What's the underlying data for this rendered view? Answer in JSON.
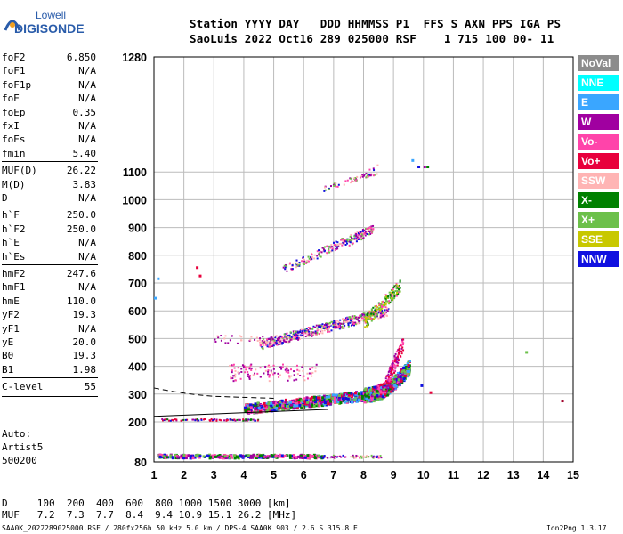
{
  "logo": {
    "line1": "Lowell",
    "line2": "DIGISONDE"
  },
  "header": {
    "line1": "Station YYYY DAY   DDD HHMMSS P1  FFS S AXN PPS IGA PS",
    "line2": "SaoLuis 2022 Oct16 289 025000 RSF    1 715 100 00- 11"
  },
  "params_group1": [
    {
      "k": "foF2",
      "v": "6.850"
    },
    {
      "k": "foF1",
      "v": "N/A"
    },
    {
      "k": "foF1p",
      "v": "N/A"
    },
    {
      "k": "foE",
      "v": "N/A"
    },
    {
      "k": "foEp",
      "v": "0.35"
    },
    {
      "k": "fxI",
      "v": "N/A"
    },
    {
      "k": "foEs",
      "v": "N/A"
    },
    {
      "k": "fmin",
      "v": "5.40"
    }
  ],
  "params_group2": [
    {
      "k": "MUF(D)",
      "v": "26.22"
    },
    {
      "k": "M(D)",
      "v": "3.83"
    },
    {
      "k": "D",
      "v": "N/A"
    }
  ],
  "params_group3": [
    {
      "k": "h`F",
      "v": "250.0"
    },
    {
      "k": "h`F2",
      "v": "250.0"
    },
    {
      "k": "h`E",
      "v": "N/A"
    },
    {
      "k": "h`Es",
      "v": "N/A"
    }
  ],
  "params_group4": [
    {
      "k": "hmF2",
      "v": "247.6"
    },
    {
      "k": "hmF1",
      "v": "N/A"
    },
    {
      "k": "hmE",
      "v": "110.0"
    },
    {
      "k": "yF2",
      "v": "19.3"
    },
    {
      "k": "yF1",
      "v": "N/A"
    },
    {
      "k": "yE",
      "v": "20.0"
    },
    {
      "k": "B0",
      "v": "19.3"
    },
    {
      "k": "B1",
      "v": "1.98"
    }
  ],
  "params_group5": [
    {
      "k": "C-level",
      "v": "55"
    }
  ],
  "autoscale": {
    "line1": "Auto:",
    "line2": "Artist5",
    "line3": "500200"
  },
  "legend": [
    {
      "label": "NoVal",
      "color": "#8c8c8c"
    },
    {
      "label": "NNE",
      "color": "#00ffff"
    },
    {
      "label": "E",
      "color": "#3aa6ff"
    },
    {
      "label": "W",
      "color": "#a000a0"
    },
    {
      "label": "Vo-",
      "color": "#ff44aa"
    },
    {
      "label": "Vo+",
      "color": "#e8003c"
    },
    {
      "label": "SSW",
      "color": "#ffb4b4"
    },
    {
      "label": "X-",
      "color": "#008000"
    },
    {
      "label": "X+",
      "color": "#6cc04a"
    },
    {
      "label": "SSE",
      "color": "#c8c800"
    },
    {
      "label": "NNW",
      "color": "#1010e0"
    }
  ],
  "axes": {
    "x_ticks": [
      "1",
      "2",
      "3",
      "4",
      "5",
      "6",
      "7",
      "8",
      "9",
      "10",
      "11",
      "12",
      "13",
      "14",
      "15"
    ],
    "y_ticks": [
      {
        "v": 80,
        "label": "80"
      },
      {
        "v": 200,
        "label": "200"
      },
      {
        "v": 300,
        "label": "300"
      },
      {
        "v": 400,
        "label": "400"
      },
      {
        "v": 500,
        "label": "500"
      },
      {
        "v": 600,
        "label": "600"
      },
      {
        "v": 700,
        "label": "700"
      },
      {
        "v": 800,
        "label": "800"
      },
      {
        "v": 900,
        "label": "900"
      },
      {
        "v": 1000,
        "label": "1000"
      },
      {
        "v": 1100,
        "label": "1100"
      },
      {
        "v": 1280,
        "label": "1280"
      }
    ]
  },
  "muf_table": {
    "row1": "D     100  200  400  600  800 1000 1500 3000 [km]",
    "row2": "MUF   7.2  7.3  7.7  8.4  9.4 10.9 15.1 26.2 [MHz]"
  },
  "footer": {
    "left": "SAA0K_2022289025000.RSF / 280fx256h 50 kHz 5.0 km / DPS-4 SAA0K 903 / 2.6 S 315.8 E",
    "right": "Ion2Png 1.3.17"
  }
}
